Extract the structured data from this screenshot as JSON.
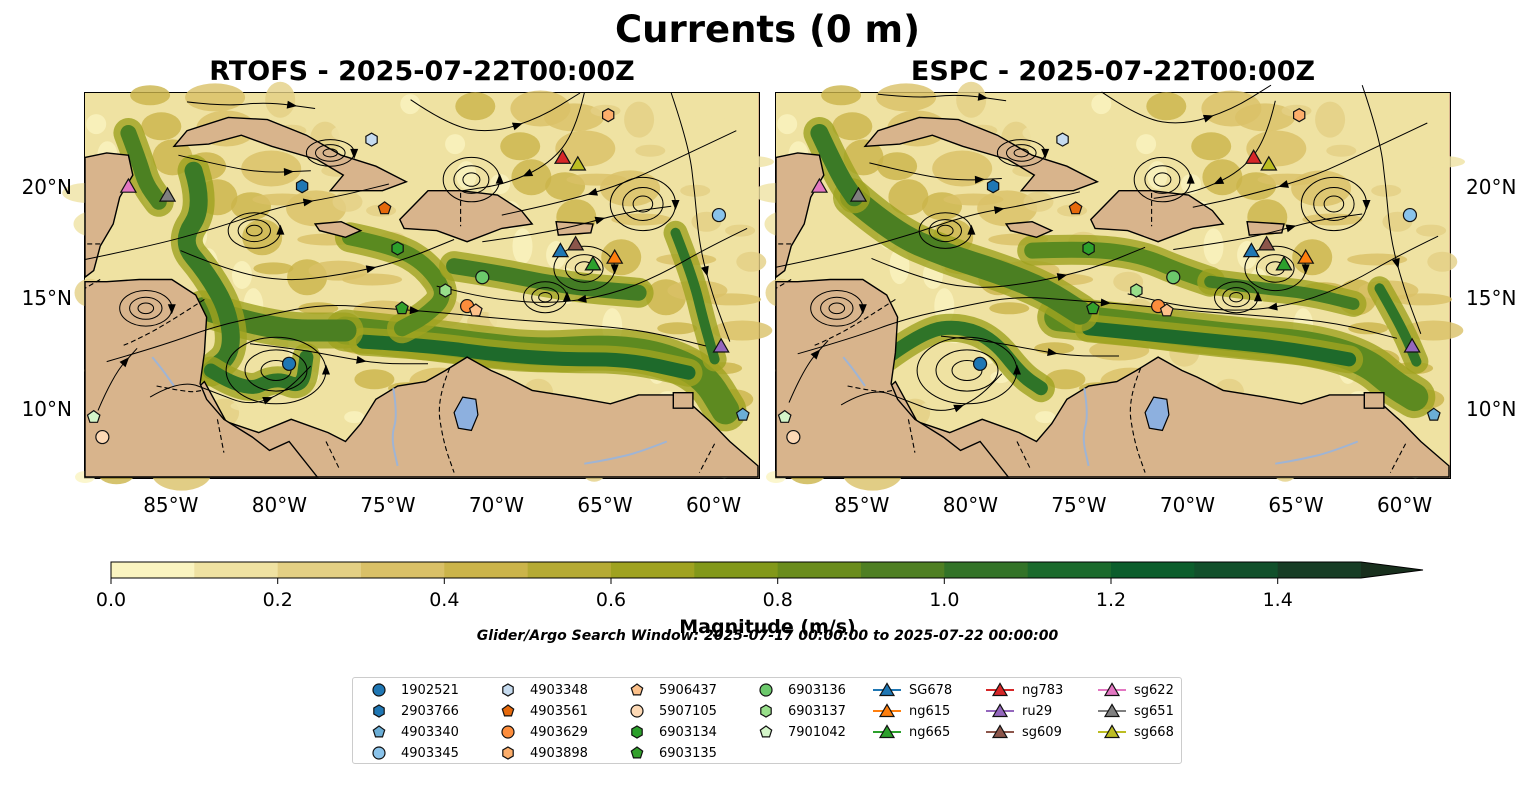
{
  "figure": {
    "suptitle": "Currents (0 m)",
    "panels": [
      {
        "id": "rtofs",
        "title": "RTOFS - 2025-07-22T00:00Z"
      },
      {
        "id": "espc",
        "title": "ESPC - 2025-07-22T00:00Z"
      }
    ],
    "lon_ticks": [
      "85°W",
      "80°W",
      "75°W",
      "70°W",
      "65°W",
      "60°W"
    ],
    "lat_ticks": [
      "20°N",
      "15°N",
      "10°N"
    ],
    "extent": {
      "lon_min": -89,
      "lon_max": -58,
      "lat_min": 7,
      "lat_max": 24.3
    },
    "colors": {
      "land": "#d8b48c",
      "lake": "#8db0df",
      "river": "#9fb4d4"
    },
    "colorbar": {
      "label": "Magnitude (m/s)",
      "ticks": [
        "0.0",
        "0.2",
        "0.4",
        "0.6",
        "0.8",
        "1.0",
        "1.2",
        "1.4"
      ],
      "range": [
        0,
        1.5
      ],
      "extend": "max",
      "colors": [
        "#faf4c0",
        "#efe2a2",
        "#e3cf84",
        "#d9c067",
        "#cbb44a",
        "#b5aa34",
        "#9fa220",
        "#82981a",
        "#6a8c1c",
        "#4f7f23",
        "#337328",
        "#1b6a2c",
        "#0c5e2c",
        "#11502b",
        "#173d25",
        "#182f1d"
      ]
    },
    "search_window": "Glider/Argo Search Window: 2025-07-17 00:00:00 to 2025-07-22 00:00:00"
  },
  "legend": [
    {
      "label": "1902521",
      "marker": "circle",
      "color": "#1f77b4"
    },
    {
      "label": "2903766",
      "marker": "hexagon",
      "color": "#1f77b4"
    },
    {
      "label": "4903340",
      "marker": "pentagon",
      "color": "#6baed6"
    },
    {
      "label": "4903345",
      "marker": "circle",
      "color": "#8ac3ea"
    },
    {
      "label": "4903348",
      "marker": "hexagon",
      "color": "#c6dbef"
    },
    {
      "label": "4903561",
      "marker": "pentagon",
      "color": "#e6690c"
    },
    {
      "label": "4903629",
      "marker": "circle",
      "color": "#fd8d3c"
    },
    {
      "label": "4903898",
      "marker": "hexagon",
      "color": "#fdae6b"
    },
    {
      "label": "5906437",
      "marker": "pentagon",
      "color": "#fdc18a"
    },
    {
      "label": "5907105",
      "marker": "circle",
      "color": "#fdd9b5"
    },
    {
      "label": "6903134",
      "marker": "hexagon",
      "color": "#2ca02c"
    },
    {
      "label": "6903135",
      "marker": "pentagon",
      "color": "#33a02c"
    },
    {
      "label": "6903136",
      "marker": "circle",
      "color": "#6cc96c"
    },
    {
      "label": "6903137",
      "marker": "hexagon",
      "color": "#98df8a"
    },
    {
      "label": "7901042",
      "marker": "pentagon",
      "color": "#d4f5c9"
    },
    {
      "label": "SG678",
      "marker": "triangle",
      "color": "#1f77b4"
    },
    {
      "label": "ng615",
      "marker": "triangle",
      "color": "#ff7f0e"
    },
    {
      "label": "ng665",
      "marker": "triangle",
      "color": "#2ca02c"
    },
    {
      "label": "ng783",
      "marker": "triangle",
      "color": "#d62728"
    },
    {
      "label": "ru29",
      "marker": "triangle",
      "color": "#9467bd"
    },
    {
      "label": "sg609",
      "marker": "triangle",
      "color": "#8c564b"
    },
    {
      "label": "sg622",
      "marker": "triangle",
      "color": "#e377c2"
    },
    {
      "label": "sg651",
      "marker": "triangle",
      "color": "#7f7f7f"
    },
    {
      "label": "sg668",
      "marker": "triangle",
      "color": "#bcbd22"
    }
  ],
  "positions": {
    "rtofs": [
      {
        "label": "1902521",
        "lon": -79.6,
        "lat": 12.1
      },
      {
        "label": "2903766",
        "lon": -79.0,
        "lat": 20.1
      },
      {
        "label": "4903340",
        "lon": -58.7,
        "lat": 9.8
      },
      {
        "label": "4903345",
        "lon": -59.8,
        "lat": 18.8
      },
      {
        "label": "4903348",
        "lon": -75.8,
        "lat": 22.2
      },
      {
        "label": "4903561",
        "lon": -75.2,
        "lat": 19.1
      },
      {
        "label": "4903629",
        "lon": -71.4,
        "lat": 14.7
      },
      {
        "label": "4903898",
        "lon": -64.9,
        "lat": 23.3
      },
      {
        "label": "5906437",
        "lon": -71.0,
        "lat": 14.5
      },
      {
        "label": "5907105",
        "lon": -88.2,
        "lat": 8.8
      },
      {
        "label": "6903134",
        "lon": -74.6,
        "lat": 17.3
      },
      {
        "label": "6903135",
        "lon": -74.4,
        "lat": 14.6
      },
      {
        "label": "6903136",
        "lon": -70.7,
        "lat": 16.0
      },
      {
        "label": "6903137",
        "lon": -72.4,
        "lat": 15.4
      },
      {
        "label": "7901042",
        "lon": -88.6,
        "lat": 9.7
      },
      {
        "label": "SG678",
        "lon": -67.1,
        "lat": 17.2
      },
      {
        "label": "ng615",
        "lon": -64.6,
        "lat": 16.9
      },
      {
        "label": "ng665",
        "lon": -65.6,
        "lat": 16.6
      },
      {
        "label": "ng783",
        "lon": -67.0,
        "lat": 21.4
      },
      {
        "label": "ru29",
        "lon": -59.7,
        "lat": 12.9
      },
      {
        "label": "sg609",
        "lon": -66.4,
        "lat": 17.5
      },
      {
        "label": "sg622",
        "lon": -87.0,
        "lat": 20.1
      },
      {
        "label": "sg651",
        "lon": -85.2,
        "lat": 19.7
      },
      {
        "label": "sg668",
        "lon": -66.3,
        "lat": 21.1
      }
    ],
    "espc": [
      {
        "label": "1902521",
        "lon": -79.6,
        "lat": 12.1
      },
      {
        "label": "2903766",
        "lon": -79.0,
        "lat": 20.1
      },
      {
        "label": "4903340",
        "lon": -58.7,
        "lat": 9.8
      },
      {
        "label": "4903345",
        "lon": -59.8,
        "lat": 18.8
      },
      {
        "label": "4903348",
        "lon": -75.8,
        "lat": 22.2
      },
      {
        "label": "4903561",
        "lon": -75.2,
        "lat": 19.1
      },
      {
        "label": "4903629",
        "lon": -71.4,
        "lat": 14.7
      },
      {
        "label": "4903898",
        "lon": -64.9,
        "lat": 23.3
      },
      {
        "label": "5906437",
        "lon": -71.0,
        "lat": 14.5
      },
      {
        "label": "5907105",
        "lon": -88.2,
        "lat": 8.8
      },
      {
        "label": "6903134",
        "lon": -74.6,
        "lat": 17.3
      },
      {
        "label": "6903135",
        "lon": -74.4,
        "lat": 14.6
      },
      {
        "label": "6903136",
        "lon": -70.7,
        "lat": 16.0
      },
      {
        "label": "6903137",
        "lon": -72.4,
        "lat": 15.4
      },
      {
        "label": "7901042",
        "lon": -88.6,
        "lat": 9.7
      },
      {
        "label": "SG678",
        "lon": -67.1,
        "lat": 17.2
      },
      {
        "label": "ng615",
        "lon": -64.6,
        "lat": 16.9
      },
      {
        "label": "ng665",
        "lon": -65.6,
        "lat": 16.6
      },
      {
        "label": "ng783",
        "lon": -67.0,
        "lat": 21.4
      },
      {
        "label": "ru29",
        "lon": -59.7,
        "lat": 12.9
      },
      {
        "label": "sg609",
        "lon": -66.4,
        "lat": 17.5
      },
      {
        "label": "sg622",
        "lon": -87.0,
        "lat": 20.1
      },
      {
        "label": "sg651",
        "lon": -85.2,
        "lat": 19.7
      },
      {
        "label": "sg668",
        "lon": -66.3,
        "lat": 21.1
      }
    ]
  }
}
